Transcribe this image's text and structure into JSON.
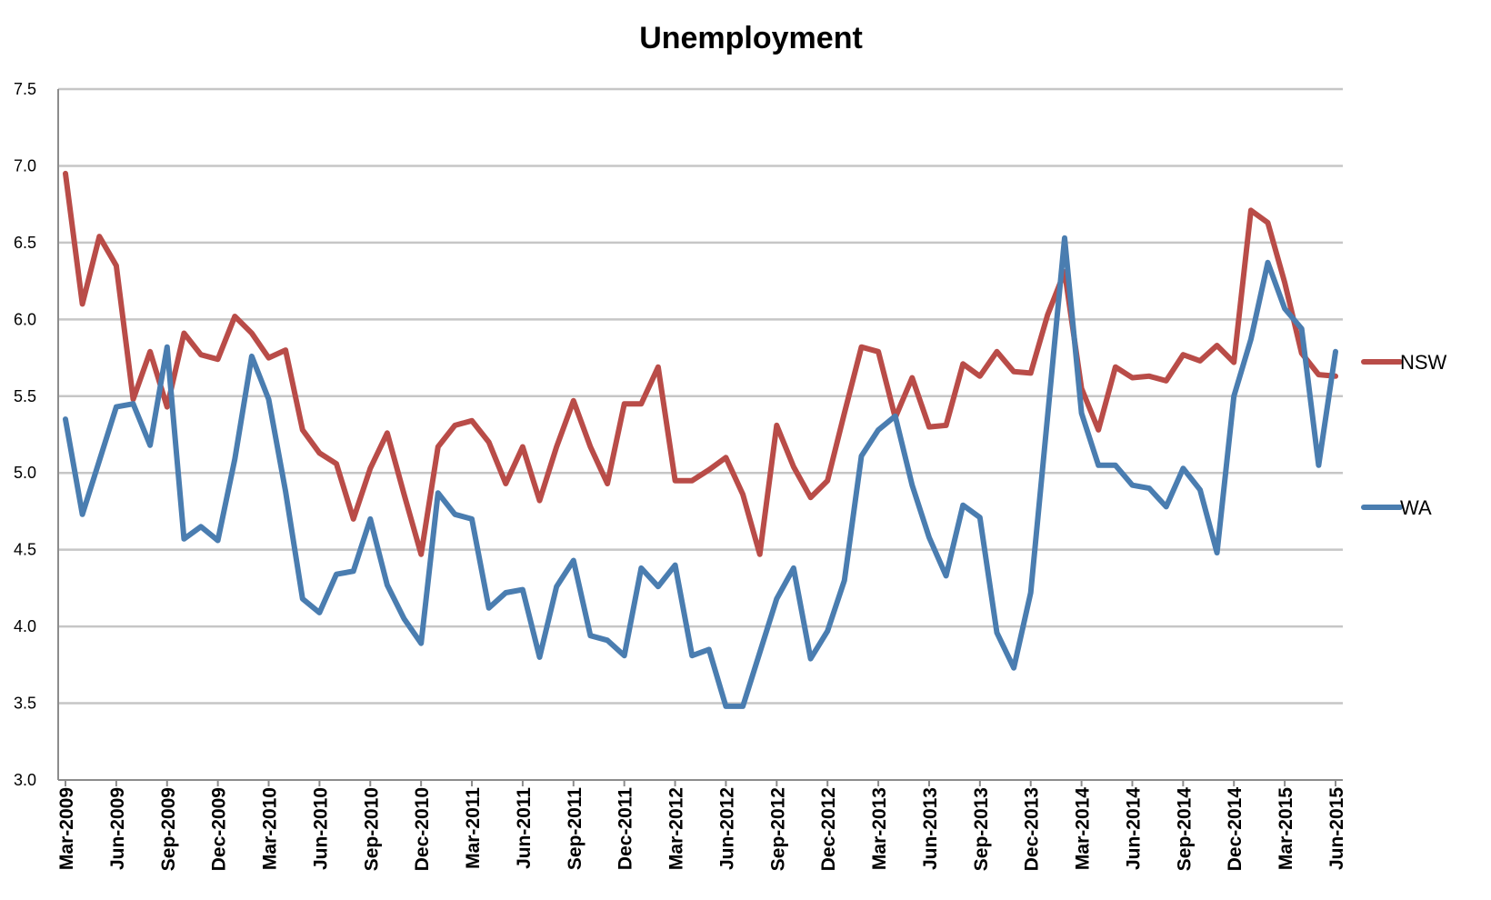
{
  "chart_data": {
    "type": "line",
    "title": "Unemployment",
    "xlabel": "",
    "ylabel": "",
    "ylim": [
      3.0,
      7.5
    ],
    "yticks": [
      "3.0",
      "3.5",
      "4.0",
      "4.5",
      "5.0",
      "5.5",
      "6.0",
      "6.5",
      "7.0",
      "7.5"
    ],
    "x_start": "Mar-2009",
    "x_end": "Jun-2015",
    "xtick_labels": [
      "Mar-2009",
      "Jun-2009",
      "Sep-2009",
      "Dec-2009",
      "Mar-2010",
      "Jun-2010",
      "Sep-2010",
      "Dec-2010",
      "Mar-2011",
      "Jun-2011",
      "Sep-2011",
      "Dec-2011",
      "Mar-2012",
      "Jun-2012",
      "Sep-2012",
      "Dec-2012",
      "Mar-2013",
      "Jun-2013",
      "Sep-2013",
      "Dec-2013",
      "Mar-2014",
      "Jun-2014",
      "Sep-2014",
      "Dec-2014",
      "Mar-2015",
      "Jun-2015"
    ],
    "grid": true,
    "legend_position": "right",
    "series": [
      {
        "name": "NSW",
        "color": "#b94c48",
        "values": [
          6.95,
          6.1,
          6.54,
          6.35,
          5.48,
          5.79,
          5.43,
          5.91,
          5.77,
          5.74,
          6.02,
          5.91,
          5.75,
          5.8,
          5.28,
          5.13,
          5.06,
          4.7,
          5.03,
          5.26,
          4.86,
          4.47,
          5.17,
          5.31,
          5.34,
          5.2,
          4.93,
          5.17,
          4.82,
          5.17,
          5.47,
          5.17,
          4.93,
          5.45,
          5.45,
          5.69,
          4.95,
          4.95,
          5.02,
          5.1,
          4.86,
          4.47,
          5.31,
          5.04,
          4.84,
          4.95,
          5.39,
          5.82,
          5.79,
          5.36,
          5.62,
          5.3,
          5.31,
          5.71,
          5.63,
          5.79,
          5.66,
          5.65,
          6.03,
          6.31,
          5.55,
          5.28,
          5.69,
          5.62,
          5.63,
          5.6,
          5.77,
          5.73,
          5.83,
          5.72,
          6.71,
          6.63,
          6.24,
          5.78,
          5.64,
          5.63
        ]
      },
      {
        "name": "WA",
        "color": "#4a7db0",
        "values": [
          5.35,
          4.73,
          5.08,
          5.43,
          5.45,
          5.18,
          5.82,
          4.57,
          4.65,
          4.56,
          5.09,
          5.76,
          5.48,
          4.88,
          4.18,
          4.09,
          4.34,
          4.36,
          4.7,
          4.27,
          4.05,
          3.89,
          4.87,
          4.73,
          4.7,
          4.12,
          4.22,
          4.24,
          3.8,
          4.26,
          4.43,
          3.94,
          3.91,
          3.81,
          4.38,
          4.26,
          4.4,
          3.81,
          3.85,
          3.48,
          3.48,
          3.83,
          4.18,
          4.38,
          3.79,
          3.97,
          4.3,
          5.11,
          5.28,
          5.37,
          4.92,
          4.58,
          4.33,
          4.79,
          4.71,
          3.96,
          3.73,
          4.22,
          5.37,
          6.53,
          5.39,
          5.05,
          5.05,
          4.92,
          4.9,
          4.78,
          5.03,
          4.89,
          4.48,
          5.5,
          5.87,
          6.37,
          6.07,
          5.94,
          5.05,
          5.79
        ]
      }
    ]
  }
}
